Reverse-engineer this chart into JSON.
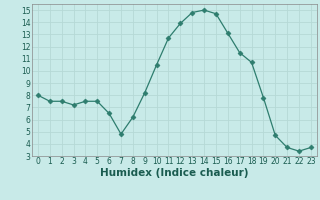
{
  "x": [
    0,
    1,
    2,
    3,
    4,
    5,
    6,
    7,
    8,
    9,
    10,
    11,
    12,
    13,
    14,
    15,
    16,
    17,
    18,
    19,
    20,
    21,
    22,
    23
  ],
  "y": [
    8.0,
    7.5,
    7.5,
    7.2,
    7.5,
    7.5,
    6.5,
    4.8,
    6.2,
    8.2,
    10.5,
    12.7,
    13.9,
    14.8,
    15.0,
    14.7,
    13.1,
    11.5,
    10.7,
    7.8,
    4.7,
    3.7,
    3.4,
    3.7
  ],
  "line_color": "#2e7d6e",
  "marker": "D",
  "marker_size": 2.5,
  "bg_color": "#c8eae8",
  "grid_color": "#b5d9d6",
  "xlabel": "Humidex (Indice chaleur)",
  "xlim": [
    -0.5,
    23.5
  ],
  "ylim": [
    3,
    15.5
  ],
  "yticks": [
    3,
    4,
    5,
    6,
    7,
    8,
    9,
    10,
    11,
    12,
    13,
    14,
    15
  ],
  "xticks": [
    0,
    1,
    2,
    3,
    4,
    5,
    6,
    7,
    8,
    9,
    10,
    11,
    12,
    13,
    14,
    15,
    16,
    17,
    18,
    19,
    20,
    21,
    22,
    23
  ],
  "tick_fontsize": 5.5,
  "label_fontsize": 7.5
}
